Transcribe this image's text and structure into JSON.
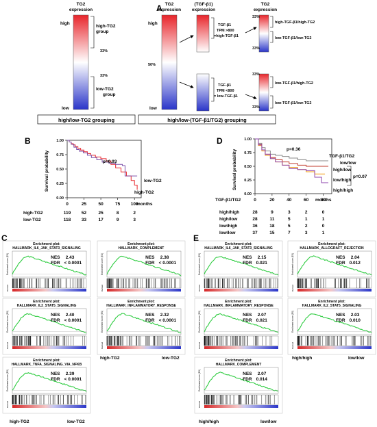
{
  "panel_a": {
    "label": "A",
    "left": {
      "header": [
        "TG2",
        "expression"
      ],
      "high": "high",
      "low": "low",
      "pct_top": "33%",
      "pct_bottom": "33%",
      "group_high": [
        "high-TG2",
        "group"
      ],
      "group_low": [
        "low-TG2",
        "group"
      ],
      "caption": "high/low-TG2 grouping"
    },
    "right": {
      "header_tg2": [
        "TG2",
        "expression"
      ],
      "header_tgf": [
        "(TGF-β1)",
        "expression"
      ],
      "header_tg2b": [
        "TG2",
        "expression"
      ],
      "high": "high",
      "low": "low",
      "pct_mid": "50%",
      "upper_rule": [
        "TGF-β1",
        "TPM >800",
        "=high-TGF-β1"
      ],
      "lower_rule": [
        "TGF-β1",
        "TPM <800",
        "= low-TGF-β1"
      ],
      "pct": [
        "33%",
        "33%",
        "33%",
        "33%"
      ],
      "groups": [
        "high-TGF-β1/high-TG2",
        "low-TGF-β1/low-TG2",
        "low-TGF-β1/high-TG2",
        "low-TGF-β1/low-TG2"
      ],
      "caption": "high/low-(TGF-β1/TG2) grouping"
    }
  },
  "panel_b": {
    "label": "B",
    "ylabel": "Survival probability",
    "pvalue": "p=0.93",
    "yticks": [
      "1.00",
      "0.75",
      "0.50",
      "0.25",
      "0.00"
    ],
    "xticks": [
      "0",
      "25",
      "50",
      "75",
      "100"
    ],
    "xunit": "months",
    "series_labels": [
      "low-TG2",
      "high-TG2"
    ],
    "risk_table": [
      {
        "group": "high-TG2",
        "counts": [
          "119",
          "52",
          "25",
          "8",
          "2"
        ]
      },
      {
        "group": "low-TG2",
        "counts": [
          "118",
          "33",
          "17",
          "9",
          "3"
        ]
      }
    ]
  },
  "panel_d": {
    "label": "D",
    "ylabel": "Survival probability",
    "pvalue": "p=0.36",
    "pvalue2": "p=0.07",
    "legend_title": "TGF-β1/TG2",
    "series_labels": [
      "low/low",
      "high/low",
      "low/high",
      "high/high"
    ],
    "yticks": [
      "1.00",
      "0.75",
      "0.50",
      "0.25",
      "0.00"
    ],
    "xticks": [
      "0",
      "20",
      "40",
      "60",
      "80"
    ],
    "xunit": "months",
    "risk_header": "TGF-β1/TG2",
    "risk_table": [
      {
        "group": "high/high",
        "counts": [
          "28",
          "9",
          "3",
          "2",
          "0"
        ]
      },
      {
        "group": "high/low",
        "counts": [
          "28",
          "11",
          "5",
          "1",
          "1"
        ]
      },
      {
        "group": "low/high",
        "counts": [
          "36",
          "18",
          "5",
          "2",
          "0"
        ]
      },
      {
        "group": "low/low",
        "counts": [
          "37",
          "15",
          "7",
          "3",
          "1"
        ]
      }
    ]
  },
  "panel_c": {
    "label": "C",
    "plots": [
      {
        "pre": "Enrichment plot:",
        "title": "HALLMARK_IL6_JAK_STAT3_SIGNALING",
        "nes": "2.43",
        "fdr": "< 0.0001"
      },
      {
        "pre": "Enrichment plot: ",
        "title": "HALLMARK_COMPLEMENT",
        "nes": "2.38",
        "fdr": "< 0.0001"
      },
      {
        "pre": "Enrichment plot:",
        "title": "HALLMARK_IL2_STAT5_SIGNALING",
        "nes": "2.40",
        "fdr": "< 0.0001"
      },
      {
        "pre": "Enrichment plot:",
        "title": "HALLMARK_INFLAMMATORY_RESPONSE",
        "nes": "2.32",
        "fdr": "< 0.0001"
      },
      {
        "pre": "Enrichment plot:",
        "title": "HALLMARK_TNFA_SIGNALING_VIA_NFKB",
        "nes": "2.39",
        "fdr": "< 0.0001"
      }
    ],
    "left_label": "high-TG2",
    "right_label": "low-TG2"
  },
  "panel_e": {
    "label": "E",
    "plots": [
      {
        "pre": "Enrichment plot:",
        "title": "HALLMARK_IL6_JAK_STAT3_SIGNALING",
        "nes": "2.15",
        "fdr": "0.021"
      },
      {
        "pre": "Enrichment plot:",
        "title": "HALLMARK_ALLOGRAFT_REJECTION",
        "nes": "2.04",
        "fdr": "0.012"
      },
      {
        "pre": "Enrichment plot:",
        "title": "HALLMARK_INFLAMMATORY_RESPONSE",
        "nes": "2.07",
        "fdr": "0.021"
      },
      {
        "pre": "Enrichment plot:",
        "title": "HALLMARK_IL2_STAT5_SIGNALING",
        "nes": "2.03",
        "fdr": "0.010"
      },
      {
        "pre": "Enrichment plot:",
        "title": "HALLMARK_COMPLEMENT",
        "nes": "2.07",
        "fdr": "0.014"
      }
    ],
    "left_label": "high/high",
    "right_label": "low/low"
  },
  "gsea_common": {
    "nes_label": "NES",
    "fdr_label": "FDR",
    "y_axis": "Enrichment score (ES)",
    "rank_axis": "Ranked"
  },
  "chart_data": [
    {
      "type": "line",
      "title": "",
      "xlabel": "months",
      "ylabel": "Survival probability",
      "xlim": [
        0,
        110
      ],
      "ylim": [
        0,
        1
      ],
      "series": [
        {
          "name": "high-TG2",
          "color": "#e8262a",
          "points": [
            [
              0,
              1
            ],
            [
              3,
              0.97
            ],
            [
              6,
              0.94
            ],
            [
              9,
              0.92
            ],
            [
              12,
              0.89
            ],
            [
              16,
              0.86
            ],
            [
              20,
              0.83
            ],
            [
              25,
              0.8
            ],
            [
              30,
              0.77
            ],
            [
              35,
              0.74
            ],
            [
              42,
              0.71
            ],
            [
              50,
              0.68
            ],
            [
              58,
              0.64
            ],
            [
              65,
              0.58
            ],
            [
              72,
              0.52
            ],
            [
              80,
              0.45
            ],
            [
              88,
              0.38
            ],
            [
              95,
              0.3
            ],
            [
              100,
              0.22
            ],
            [
              104,
              0.14
            ]
          ]
        },
        {
          "name": "low-TG2",
          "color": "#7b4fa8",
          "points": [
            [
              0,
              1
            ],
            [
              3,
              0.97
            ],
            [
              6,
              0.93
            ],
            [
              10,
              0.88
            ],
            [
              14,
              0.84
            ],
            [
              18,
              0.81
            ],
            [
              24,
              0.78
            ],
            [
              30,
              0.74
            ],
            [
              36,
              0.7
            ],
            [
              44,
              0.66
            ],
            [
              52,
              0.62
            ],
            [
              62,
              0.6
            ],
            [
              72,
              0.58
            ],
            [
              82,
              0.56
            ],
            [
              86,
              0.38
            ],
            [
              104,
              0.38
            ]
          ]
        }
      ]
    },
    {
      "type": "line",
      "title": "",
      "xlabel": "months",
      "ylabel": "Survival probability",
      "xlim": [
        0,
        90
      ],
      "ylim": [
        0,
        1
      ],
      "series": [
        {
          "name": "low/low",
          "color": "#8a8a8a",
          "points": [
            [
              0,
              1
            ],
            [
              4,
              0.92
            ],
            [
              8,
              0.84
            ],
            [
              12,
              0.78
            ],
            [
              18,
              0.72
            ],
            [
              24,
              0.7
            ],
            [
              32,
              0.68
            ],
            [
              40,
              0.65
            ],
            [
              50,
              0.62
            ],
            [
              60,
              0.6
            ],
            [
              70,
              0.6
            ],
            [
              86,
              0.6
            ]
          ]
        },
        {
          "name": "high/low",
          "color": "#c0392b",
          "points": [
            [
              0,
              1
            ],
            [
              4,
              0.9
            ],
            [
              8,
              0.8
            ],
            [
              12,
              0.72
            ],
            [
              18,
              0.66
            ],
            [
              24,
              0.62
            ],
            [
              32,
              0.58
            ],
            [
              40,
              0.55
            ],
            [
              50,
              0.52
            ],
            [
              60,
              0.5
            ],
            [
              70,
              0.5
            ],
            [
              86,
              0.5
            ]
          ]
        },
        {
          "name": "low/high",
          "color": "#f39c12",
          "points": [
            [
              0,
              1
            ],
            [
              4,
              0.88
            ],
            [
              8,
              0.78
            ],
            [
              12,
              0.7
            ],
            [
              18,
              0.64
            ],
            [
              24,
              0.58
            ],
            [
              32,
              0.52
            ],
            [
              40,
              0.48
            ],
            [
              50,
              0.44
            ],
            [
              60,
              0.4
            ],
            [
              70,
              0.36
            ],
            [
              82,
              0.36
            ]
          ]
        },
        {
          "name": "high/high",
          "color": "#8e44ad",
          "points": [
            [
              0,
              1
            ],
            [
              4,
              0.89
            ],
            [
              8,
              0.8
            ],
            [
              12,
              0.72
            ],
            [
              18,
              0.64
            ],
            [
              24,
              0.58
            ],
            [
              32,
              0.52
            ],
            [
              40,
              0.46
            ],
            [
              50,
              0.44
            ],
            [
              60,
              0.42
            ],
            [
              70,
              0.3
            ],
            [
              78,
              0.2
            ],
            [
              86,
              0.2
            ]
          ]
        }
      ]
    }
  ]
}
